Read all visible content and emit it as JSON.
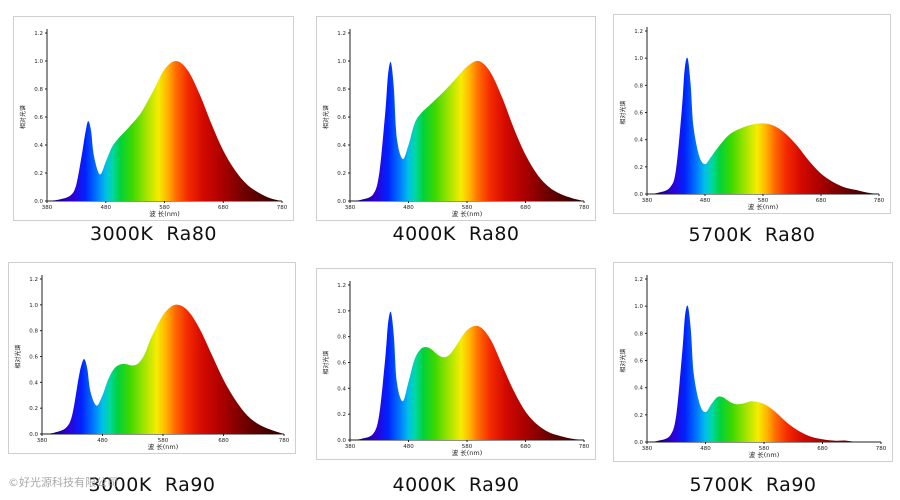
{
  "figure": {
    "watermark": "©好光源科技有限公司"
  },
  "chart_data": [
    {
      "type": "area",
      "caption": "3000K  Ra80",
      "cct": "3000K",
      "ra": "Ra80",
      "ylabel": "相对光谱",
      "xlabel": "波 长(nm)",
      "ylim": [
        0,
        1.2
      ],
      "xlim": [
        380,
        780
      ],
      "yticks": [
        "0.0",
        "0.2",
        "0.4",
        "0.6",
        "0.8",
        "1.0",
        "1.2"
      ],
      "xticks": [
        "380",
        "480",
        "580",
        "680",
        "780"
      ],
      "spectrum": {
        "x": [
          380,
          400,
          420,
          430,
          440,
          445,
          450,
          455,
          460,
          470,
          480,
          490,
          500,
          520,
          540,
          560,
          580,
          600,
          620,
          640,
          660,
          680,
          700,
          720,
          740,
          760,
          780
        ],
        "y": [
          0.0,
          0.01,
          0.04,
          0.12,
          0.35,
          0.48,
          0.57,
          0.5,
          0.32,
          0.19,
          0.28,
          0.38,
          0.44,
          0.53,
          0.63,
          0.78,
          0.94,
          1.0,
          0.93,
          0.76,
          0.55,
          0.36,
          0.22,
          0.12,
          0.06,
          0.02,
          0.0
        ]
      }
    },
    {
      "type": "area",
      "caption": "4000K  Ra80",
      "cct": "4000K",
      "ra": "Ra80",
      "ylabel": "相对光谱",
      "xlabel": "波 长(nm)",
      "ylim": [
        0,
        1.2
      ],
      "xlim": [
        380,
        780
      ],
      "yticks": [
        "0.0",
        "0.2",
        "0.4",
        "0.6",
        "0.8",
        "1.0",
        "1.2"
      ],
      "xticks": [
        "380",
        "480",
        "580",
        "680",
        "780"
      ],
      "spectrum": {
        "x": [
          380,
          400,
          420,
          430,
          440,
          445,
          450,
          455,
          460,
          470,
          480,
          490,
          500,
          520,
          540,
          560,
          580,
          600,
          620,
          640,
          660,
          680,
          700,
          720,
          740,
          760,
          780
        ],
        "y": [
          0.0,
          0.01,
          0.05,
          0.2,
          0.62,
          0.9,
          0.99,
          0.8,
          0.45,
          0.3,
          0.4,
          0.55,
          0.62,
          0.7,
          0.78,
          0.87,
          0.96,
          1.0,
          0.92,
          0.74,
          0.52,
          0.33,
          0.19,
          0.1,
          0.05,
          0.02,
          0.0
        ]
      }
    },
    {
      "type": "area",
      "caption": "5700K  Ra80",
      "cct": "5700K",
      "ra": "Ra80",
      "ylabel": "相对光谱",
      "xlabel": "波 长(nm)",
      "ylim": [
        0,
        1.2
      ],
      "xlim": [
        380,
        780
      ],
      "yticks": [
        "0.0",
        "0.2",
        "0.4",
        "0.6",
        "0.8",
        "1.0",
        "1.2"
      ],
      "xticks": [
        "380",
        "480",
        "580",
        "680",
        "780"
      ],
      "spectrum": {
        "x": [
          380,
          400,
          420,
          430,
          440,
          445,
          450,
          455,
          460,
          470,
          480,
          490,
          500,
          520,
          540,
          560,
          580,
          600,
          620,
          640,
          660,
          680,
          700,
          720,
          740,
          760,
          780
        ],
        "y": [
          0.0,
          0.01,
          0.05,
          0.18,
          0.62,
          0.92,
          1.0,
          0.82,
          0.5,
          0.28,
          0.22,
          0.27,
          0.33,
          0.43,
          0.48,
          0.51,
          0.52,
          0.5,
          0.44,
          0.35,
          0.24,
          0.15,
          0.09,
          0.05,
          0.03,
          0.01,
          0.0
        ]
      }
    },
    {
      "type": "area",
      "caption": "3000K  Ra90",
      "cct": "3000K",
      "ra": "Ra90",
      "ylabel": "相对光谱",
      "xlabel": "波 长(nm)",
      "ylim": [
        0,
        1.2
      ],
      "xlim": [
        380,
        780
      ],
      "yticks": [
        "0.0",
        "0.2",
        "0.4",
        "0.6",
        "0.8",
        "1.0",
        "1.2"
      ],
      "xticks": [
        "380",
        "480",
        "580",
        "680",
        "780"
      ],
      "spectrum": {
        "x": [
          380,
          400,
          420,
          430,
          440,
          445,
          450,
          455,
          460,
          470,
          480,
          490,
          500,
          510,
          520,
          530,
          540,
          550,
          560,
          580,
          600,
          620,
          640,
          660,
          680,
          700,
          720,
          740,
          760,
          780
        ],
        "y": [
          0.0,
          0.01,
          0.05,
          0.15,
          0.42,
          0.53,
          0.58,
          0.5,
          0.33,
          0.22,
          0.3,
          0.43,
          0.51,
          0.54,
          0.54,
          0.53,
          0.55,
          0.62,
          0.74,
          0.92,
          1.0,
          0.96,
          0.82,
          0.62,
          0.42,
          0.26,
          0.14,
          0.07,
          0.03,
          0.0
        ]
      }
    },
    {
      "type": "area",
      "caption": "4000K  Ra90",
      "cct": "4000K",
      "ra": "Ra90",
      "ylabel": "相对光谱",
      "xlabel": "波 长(nm)",
      "ylim": [
        0,
        1.2
      ],
      "xlim": [
        380,
        780
      ],
      "yticks": [
        "0.0",
        "0.2",
        "0.4",
        "0.6",
        "0.8",
        "1.0",
        "1.2"
      ],
      "xticks": [
        "380",
        "480",
        "580",
        "680",
        "780"
      ],
      "spectrum": {
        "x": [
          380,
          400,
          420,
          430,
          440,
          445,
          450,
          455,
          460,
          470,
          480,
          490,
          500,
          510,
          520,
          530,
          540,
          550,
          560,
          580,
          600,
          620,
          640,
          660,
          680,
          700,
          720,
          740,
          760,
          780
        ],
        "y": [
          0.0,
          0.01,
          0.05,
          0.2,
          0.62,
          0.9,
          0.99,
          0.8,
          0.45,
          0.3,
          0.45,
          0.62,
          0.7,
          0.72,
          0.7,
          0.66,
          0.64,
          0.66,
          0.72,
          0.85,
          0.88,
          0.78,
          0.58,
          0.38,
          0.22,
          0.12,
          0.06,
          0.03,
          0.01,
          0.0
        ]
      }
    },
    {
      "type": "area",
      "caption": "5700K  Ra90",
      "cct": "5700K",
      "ra": "Ra90",
      "ylabel": "相对光谱",
      "xlabel": "波 长(nm)",
      "ylim": [
        0,
        1.2
      ],
      "xlim": [
        380,
        780
      ],
      "yticks": [
        "0.0",
        "0.2",
        "0.4",
        "0.6",
        "0.8",
        "1.0",
        "1.2"
      ],
      "xticks": [
        "380",
        "480",
        "580",
        "680",
        "780"
      ],
      "spectrum": {
        "x": [
          380,
          400,
          420,
          430,
          440,
          445,
          450,
          455,
          460,
          470,
          480,
          490,
          500,
          510,
          520,
          530,
          540,
          550,
          560,
          580,
          600,
          620,
          640,
          660,
          680,
          700,
          720,
          740,
          760,
          780
        ],
        "y": [
          0.0,
          0.01,
          0.05,
          0.2,
          0.65,
          0.93,
          1.0,
          0.82,
          0.5,
          0.28,
          0.22,
          0.28,
          0.33,
          0.33,
          0.3,
          0.28,
          0.28,
          0.29,
          0.3,
          0.28,
          0.22,
          0.14,
          0.08,
          0.04,
          0.02,
          0.01,
          0.01,
          0.0,
          0.0,
          0.0
        ]
      }
    }
  ]
}
